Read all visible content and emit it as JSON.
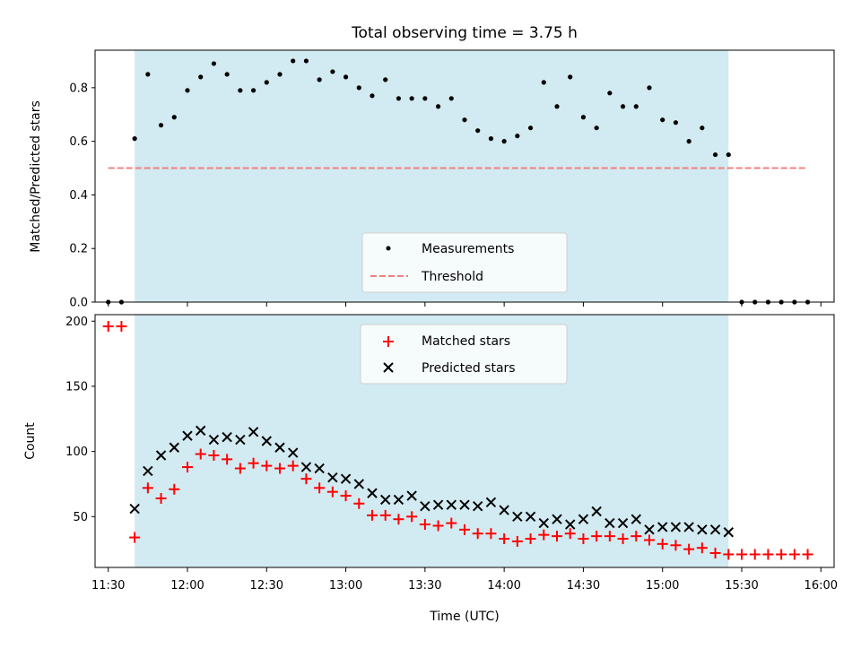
{
  "chart_data": [
    {
      "type": "scatter",
      "title": "Total observing time = 3.75 h",
      "xlabel": "",
      "ylabel": "Matched/Predicted stars",
      "xlim": [
        "11:25",
        "16:05"
      ],
      "ylim": [
        0,
        0.94
      ],
      "yticks": [
        "0.0",
        "0.2",
        "0.4",
        "0.6",
        "0.8"
      ],
      "shaded_span": [
        "11:40",
        "15:25"
      ],
      "shaded_color": "#add8e6",
      "legend": {
        "placement": "bottom-center",
        "entries": [
          "Measurements",
          "Threshold"
        ]
      },
      "threshold": {
        "name": "Threshold",
        "y": 0.5,
        "x": [
          "11:30",
          "15:55"
        ],
        "color": "#f08080",
        "style": "dashed"
      },
      "series": [
        {
          "name": "Measurements",
          "color": "#000000",
          "x": [
            "11:30",
            "11:35",
            "11:40",
            "11:45",
            "11:50",
            "11:55",
            "12:00",
            "12:05",
            "12:10",
            "12:15",
            "12:20",
            "12:25",
            "12:30",
            "12:35",
            "12:40",
            "12:45",
            "12:50",
            "12:55",
            "13:00",
            "13:05",
            "13:10",
            "13:15",
            "13:20",
            "13:25",
            "13:30",
            "13:35",
            "13:40",
            "13:45",
            "13:50",
            "13:55",
            "14:00",
            "14:05",
            "14:10",
            "14:15",
            "14:20",
            "14:25",
            "14:30",
            "14:35",
            "14:40",
            "14:45",
            "14:50",
            "14:55",
            "15:00",
            "15:05",
            "15:10",
            "15:15",
            "15:20",
            "15:25",
            "15:30",
            "15:35",
            "15:40",
            "15:45",
            "15:50",
            "15:55"
          ],
          "values": [
            0.0,
            0.0,
            0.61,
            0.85,
            0.66,
            0.69,
            0.79,
            0.84,
            0.89,
            0.85,
            0.79,
            0.79,
            0.82,
            0.85,
            0.9,
            0.9,
            0.83,
            0.86,
            0.84,
            0.8,
            0.77,
            0.83,
            0.76,
            0.76,
            0.76,
            0.73,
            0.76,
            0.68,
            0.64,
            0.61,
            0.6,
            0.62,
            0.65,
            0.82,
            0.73,
            0.84,
            0.69,
            0.65,
            0.78,
            0.73,
            0.73,
            0.8,
            0.68,
            0.67,
            0.6,
            0.65,
            0.55,
            0.55,
            0.0,
            0.0,
            0.0,
            0.0,
            0.0,
            0.0
          ]
        }
      ]
    },
    {
      "type": "scatter",
      "title": "",
      "xlabel": "Time (UTC)",
      "ylabel": "Count",
      "xlim": [
        "11:25",
        "16:05"
      ],
      "ylim": [
        11,
        205
      ],
      "xticks": [
        "11:30",
        "12:00",
        "12:30",
        "13:00",
        "13:30",
        "14:00",
        "14:30",
        "15:00",
        "15:30",
        "16:00"
      ],
      "yticks": [
        "50",
        "100",
        "150",
        "200"
      ],
      "shaded_span": [
        "11:40",
        "15:25"
      ],
      "shaded_color": "#add8e6",
      "legend": {
        "placement": "top-center",
        "entries": [
          "Matched stars",
          "Predicted stars"
        ]
      },
      "series": [
        {
          "name": "Matched stars",
          "marker": "plus",
          "color": "#ff0000",
          "x": [
            "11:30",
            "11:35",
            "11:40",
            "11:45",
            "11:50",
            "11:55",
            "12:00",
            "12:05",
            "12:10",
            "12:15",
            "12:20",
            "12:25",
            "12:30",
            "12:35",
            "12:40",
            "12:45",
            "12:50",
            "12:55",
            "13:00",
            "13:05",
            "13:10",
            "13:15",
            "13:20",
            "13:25",
            "13:30",
            "13:35",
            "13:40",
            "13:45",
            "13:50",
            "13:55",
            "14:00",
            "14:05",
            "14:10",
            "14:15",
            "14:20",
            "14:25",
            "14:30",
            "14:35",
            "14:40",
            "14:45",
            "14:50",
            "14:55",
            "15:00",
            "15:05",
            "15:10",
            "15:15",
            "15:20",
            "15:25",
            "15:30",
            "15:35",
            "15:40",
            "15:45",
            "15:50",
            "15:55"
          ],
          "values": [
            196,
            196,
            34,
            72,
            64,
            71,
            88,
            98,
            97,
            94,
            87,
            91,
            89,
            87,
            89,
            79,
            72,
            69,
            66,
            60,
            51,
            51,
            48,
            50,
            44,
            43,
            45,
            40,
            37,
            37,
            33,
            31,
            33,
            36,
            35,
            37,
            33,
            35,
            35,
            33,
            35,
            32,
            29,
            28,
            25,
            26,
            22,
            21,
            21,
            21,
            21,
            21,
            21,
            21
          ]
        },
        {
          "name": "Predicted stars",
          "marker": "x",
          "color": "#000000",
          "x": [
            "11:40",
            "11:45",
            "11:50",
            "11:55",
            "12:00",
            "12:05",
            "12:10",
            "12:15",
            "12:20",
            "12:25",
            "12:30",
            "12:35",
            "12:40",
            "12:45",
            "12:50",
            "12:55",
            "13:00",
            "13:05",
            "13:10",
            "13:15",
            "13:20",
            "13:25",
            "13:30",
            "13:35",
            "13:40",
            "13:45",
            "13:50",
            "13:55",
            "14:00",
            "14:05",
            "14:10",
            "14:15",
            "14:20",
            "14:25",
            "14:30",
            "14:35",
            "14:40",
            "14:45",
            "14:50",
            "14:55",
            "15:00",
            "15:05",
            "15:10",
            "15:15",
            "15:20",
            "15:25"
          ],
          "values": [
            56,
            85,
            97,
            103,
            112,
            116,
            109,
            111,
            109,
            115,
            108,
            103,
            99,
            88,
            87,
            80,
            79,
            75,
            68,
            63,
            63,
            66,
            58,
            59,
            59,
            59,
            58,
            61,
            55,
            50,
            50,
            45,
            48,
            44,
            48,
            54,
            45,
            45,
            48,
            40,
            42,
            42,
            42,
            40,
            40,
            38
          ]
        }
      ]
    }
  ]
}
